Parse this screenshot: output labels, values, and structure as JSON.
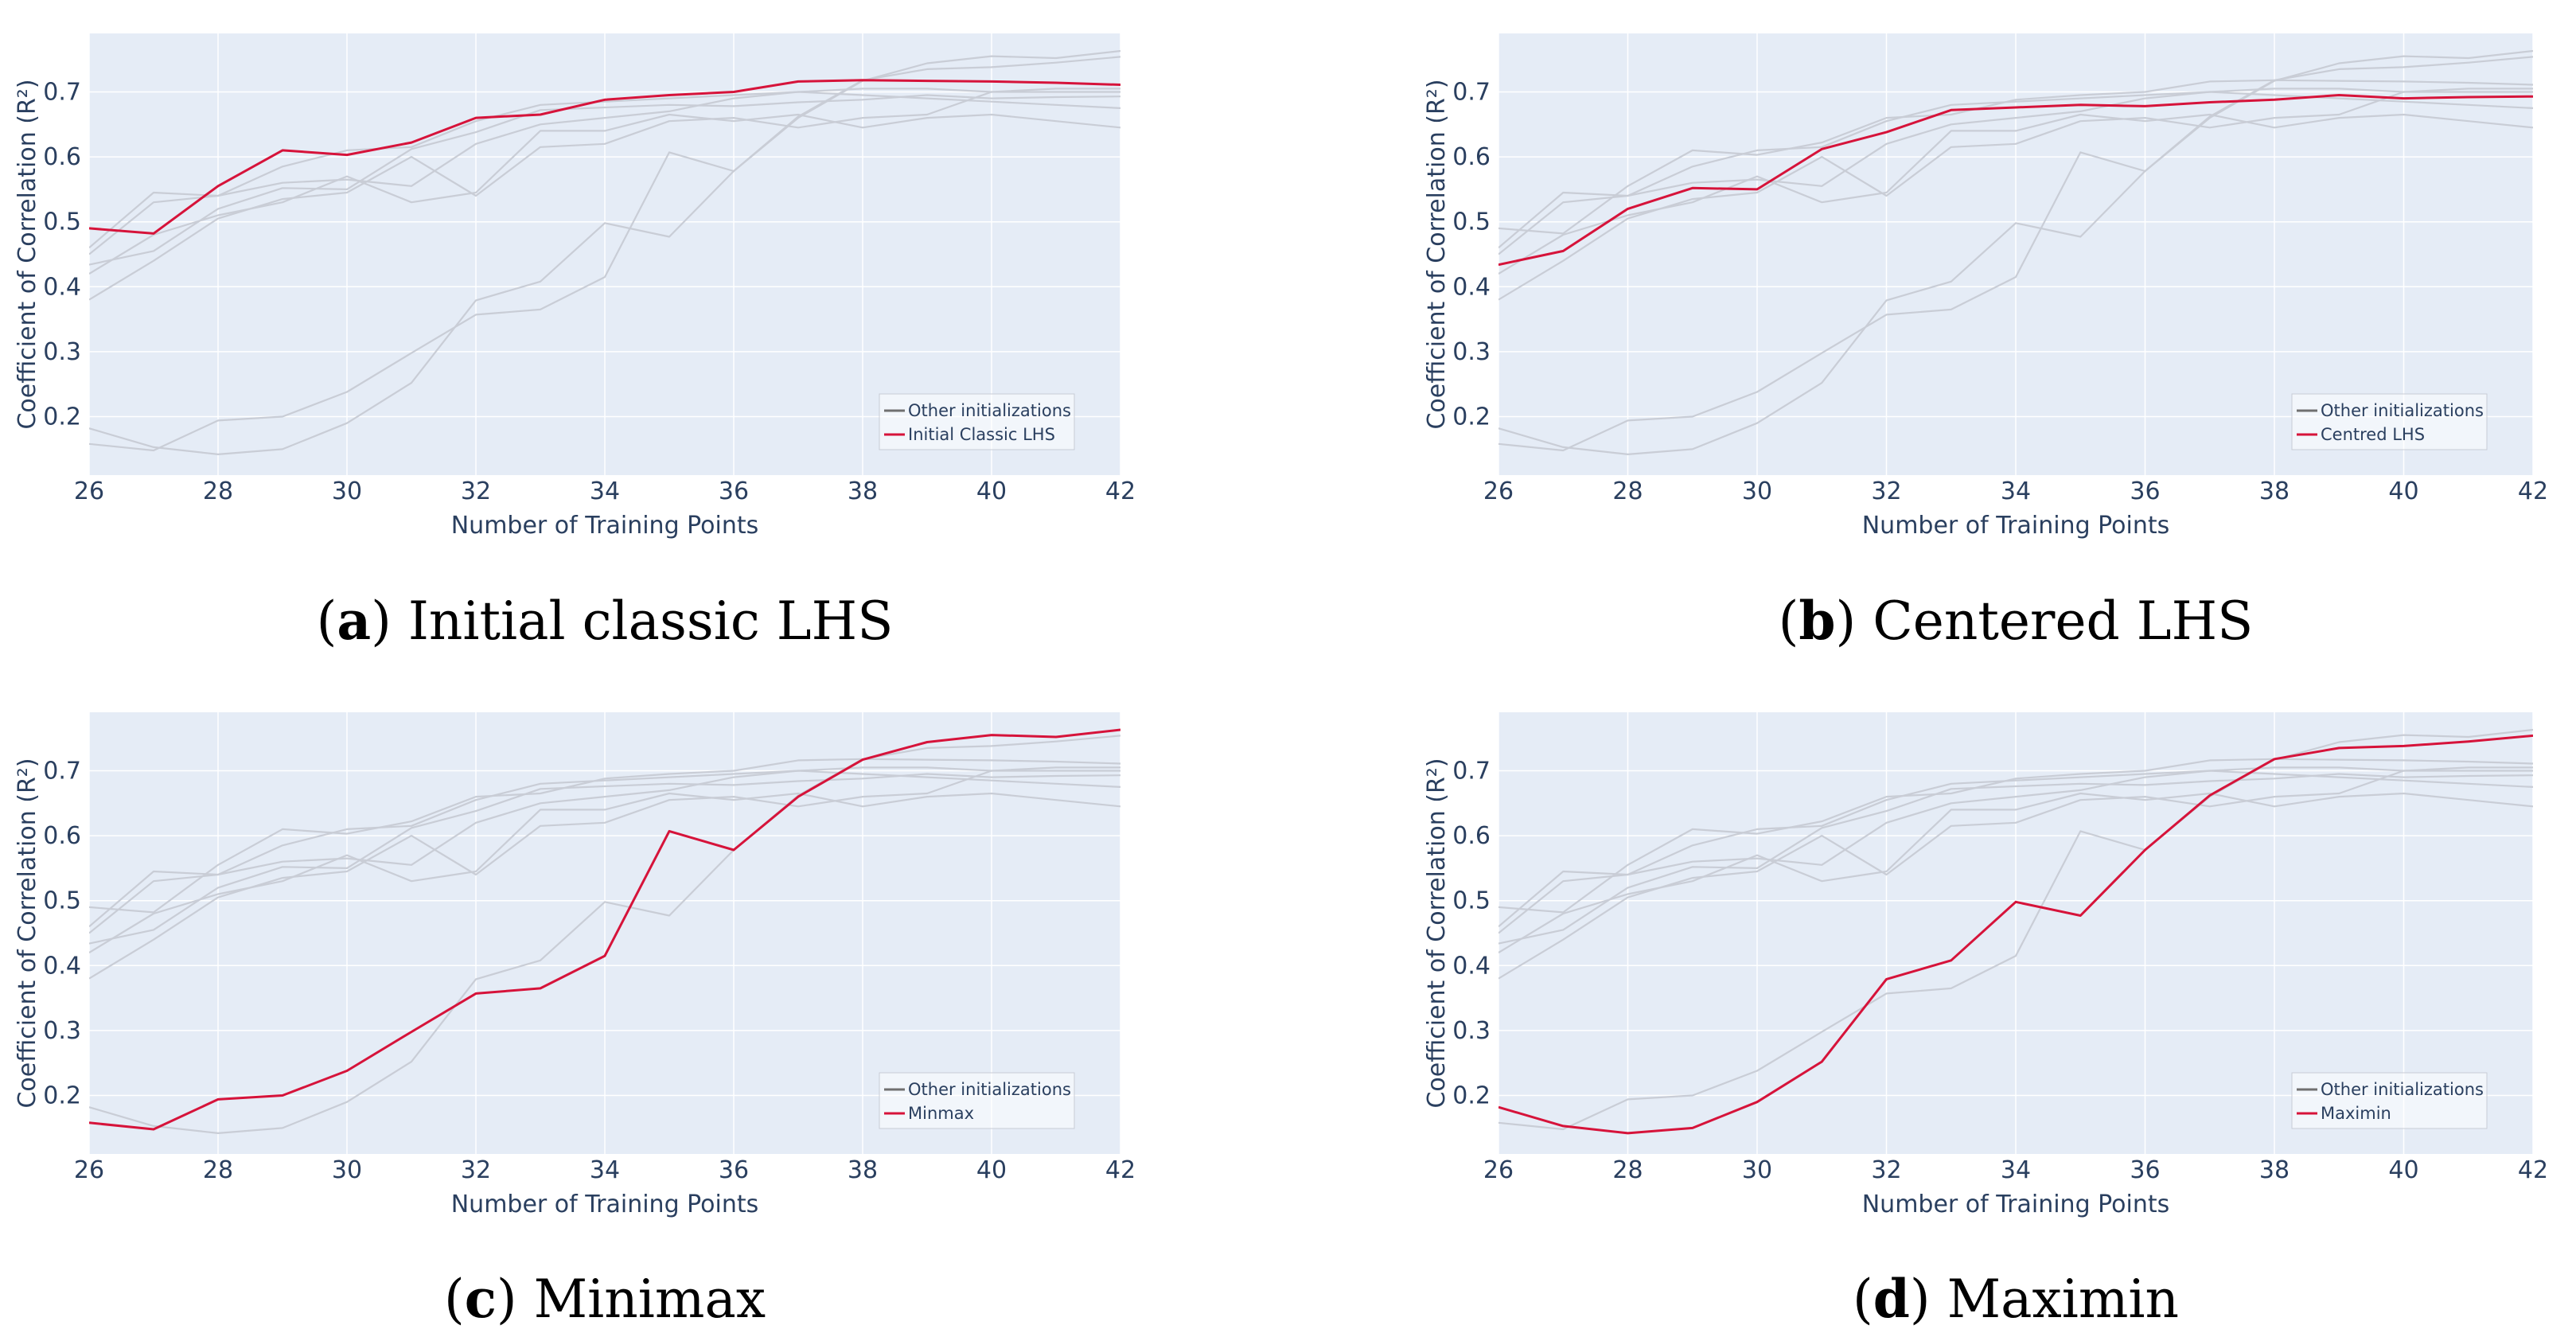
{
  "chart_data": [
    {
      "type": "line",
      "caption": {
        "open": "(",
        "letter": "a",
        "close": ")",
        "text": " Initial classic LHS"
      },
      "xlabel": "Number of Training Points",
      "ylabel": "Coefficient of Correlation (R²)",
      "xlim": [
        26,
        42
      ],
      "ylim": [
        0.11,
        0.79
      ],
      "xticks": [
        "26",
        "28",
        "30",
        "32",
        "34",
        "36",
        "38",
        "40",
        "42"
      ],
      "yticks": [
        "0.2",
        "0.3",
        "0.4",
        "0.5",
        "0.6",
        "0.7"
      ],
      "legend": [
        "Other initializations",
        "Initial Classic LHS"
      ],
      "legend_position": "bottom-right",
      "highlight": "lhs"
    },
    {
      "type": "line",
      "caption": {
        "open": "(",
        "letter": "b",
        "close": ")",
        "text": " Centered LHS"
      },
      "xlabel": "Number of Training Points",
      "ylabel": "Coefficient of Correlation (R²)",
      "xlim": [
        26,
        42
      ],
      "ylim": [
        0.11,
        0.79
      ],
      "xticks": [
        "26",
        "28",
        "30",
        "32",
        "34",
        "36",
        "38",
        "40",
        "42"
      ],
      "yticks": [
        "0.2",
        "0.3",
        "0.4",
        "0.5",
        "0.6",
        "0.7"
      ],
      "legend": [
        "Other initializations",
        "Centred LHS"
      ],
      "legend_position": "bottom-right",
      "highlight": "centered"
    },
    {
      "type": "line",
      "caption": {
        "open": "(",
        "letter": "c",
        "close": ")",
        "text": " Minimax"
      },
      "xlabel": "Number of Training Points",
      "ylabel": "Coefficient of Correlation (R²)",
      "xlim": [
        26,
        42
      ],
      "ylim": [
        0.11,
        0.79
      ],
      "xticks": [
        "26",
        "28",
        "30",
        "32",
        "34",
        "36",
        "38",
        "40",
        "42"
      ],
      "yticks": [
        "0.2",
        "0.3",
        "0.4",
        "0.5",
        "0.6",
        "0.7"
      ],
      "legend": [
        "Other initializations",
        "Minmax"
      ],
      "legend_position": "bottom-right",
      "highlight": "minmax"
    },
    {
      "type": "line",
      "caption": {
        "open": "(",
        "letter": "d",
        "close": ")",
        "text": " Maximin"
      },
      "xlabel": "Number of Training Points",
      "ylabel": "Coefficient of Correlation (R²)",
      "xlim": [
        26,
        42
      ],
      "ylim": [
        0.11,
        0.79
      ],
      "xticks": [
        "26",
        "28",
        "30",
        "32",
        "34",
        "36",
        "38",
        "40",
        "42"
      ],
      "yticks": [
        "0.2",
        "0.3",
        "0.4",
        "0.5",
        "0.6",
        "0.7"
      ],
      "legend": [
        "Other initializations",
        "Maximin"
      ],
      "legend_position": "bottom-right",
      "highlight": "maximin"
    }
  ],
  "x": [
    26,
    27,
    28,
    29,
    30,
    31,
    32,
    33,
    34,
    35,
    36,
    37,
    38,
    39,
    40,
    41,
    42
  ],
  "series": [
    {
      "name": "lhs",
      "values": [
        0.49,
        0.482,
        0.555,
        0.61,
        0.603,
        0.622,
        0.66,
        0.665,
        0.688,
        0.695,
        0.7,
        0.716,
        0.718,
        0.717,
        0.716,
        0.714,
        0.711
      ]
    },
    {
      "name": "centered",
      "values": [
        0.434,
        0.455,
        0.52,
        0.552,
        0.55,
        0.612,
        0.638,
        0.672,
        0.676,
        0.68,
        0.678,
        0.684,
        0.688,
        0.695,
        0.69,
        0.692,
        0.693
      ]
    },
    {
      "name": "minmax",
      "values": [
        0.158,
        0.148,
        0.194,
        0.2,
        0.238,
        0.298,
        0.357,
        0.365,
        0.415,
        0.607,
        0.578,
        0.66,
        0.717,
        0.744,
        0.755,
        0.752,
        0.763
      ]
    },
    {
      "name": "maximin",
      "values": [
        0.182,
        0.153,
        0.142,
        0.15,
        0.19,
        0.252,
        0.379,
        0.408,
        0.498,
        0.477,
        0.578,
        0.662,
        0.718,
        0.735,
        0.738,
        0.745,
        0.754
      ]
    },
    {
      "name": "other1",
      "values": [
        0.46,
        0.545,
        0.54,
        0.585,
        0.61,
        0.615,
        0.655,
        0.68,
        0.685,
        0.69,
        0.695,
        0.7,
        0.705,
        0.705,
        0.7,
        0.7,
        0.7
      ]
    },
    {
      "name": "other2",
      "values": [
        0.38,
        0.44,
        0.505,
        0.535,
        0.545,
        0.6,
        0.54,
        0.615,
        0.62,
        0.655,
        0.66,
        0.645,
        0.66,
        0.665,
        0.7,
        0.705,
        0.705
      ]
    },
    {
      "name": "other3",
      "values": [
        0.42,
        0.48,
        0.51,
        0.53,
        0.57,
        0.53,
        0.545,
        0.64,
        0.64,
        0.665,
        0.655,
        0.665,
        0.645,
        0.66,
        0.665,
        0.655,
        0.645
      ]
    },
    {
      "name": "other4",
      "values": [
        0.45,
        0.53,
        0.54,
        0.56,
        0.565,
        0.555,
        0.62,
        0.65,
        0.66,
        0.67,
        0.69,
        0.7,
        0.695,
        0.69,
        0.685,
        0.68,
        0.675
      ]
    }
  ],
  "other_color": "#c9cdd6",
  "highlight_color": "#d6133a",
  "legend_other_color": "#707070",
  "plot_bg": "#e5ecf6",
  "grid_color": "#ffffff"
}
